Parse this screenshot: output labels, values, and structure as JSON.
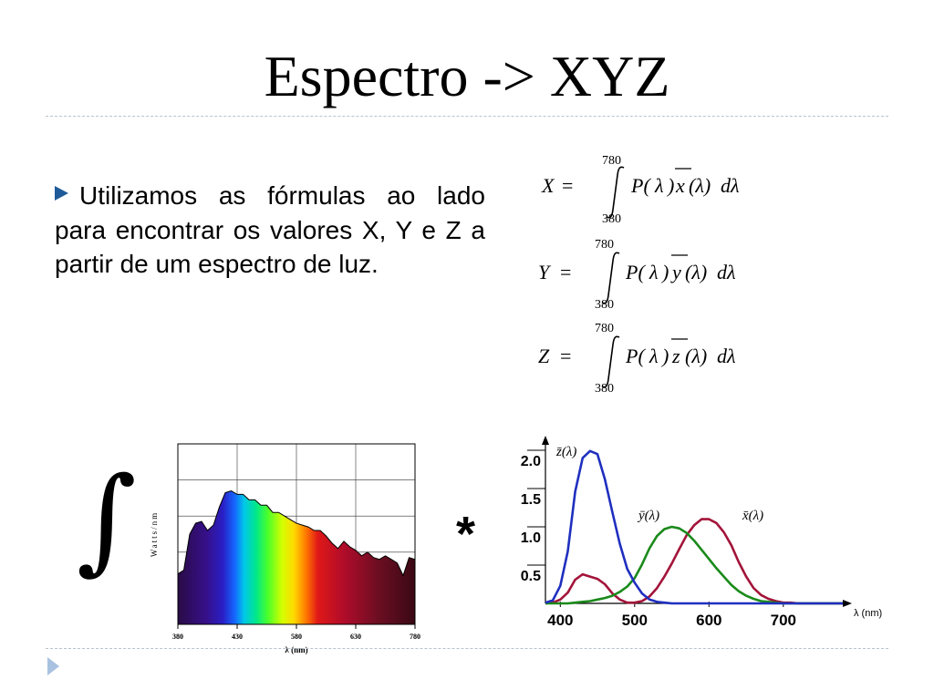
{
  "slide": {
    "title": "Espectro -> XYZ",
    "bullet_text": "Utilizamos as fórmulas ao lado para encontrar os valores X, Y e Z a partir de um espectro de luz.",
    "operator_integral": "∫",
    "operator_multiply": "*"
  },
  "formulas": [
    {
      "lhs": "X",
      "integral_upper": "780",
      "integral_lower": "380",
      "cmf": "x"
    },
    {
      "lhs": "Y",
      "integral_upper": "780",
      "integral_lower": "380",
      "cmf": "y"
    },
    {
      "lhs": "Z",
      "integral_upper": "780",
      "integral_lower": "380",
      "cmf": "z"
    }
  ],
  "spd_chart": {
    "ylabel": "Watts/nm",
    "xlabel": "λ (nm)",
    "x_ticks": [
      "380",
      "430",
      "580",
      "630",
      "780"
    ],
    "chart_data": {
      "type": "area",
      "ylabel": "Watts/nm",
      "xlabel": "λ (nm)",
      "ylim": [
        0,
        1
      ],
      "x": [
        380,
        390,
        400,
        410,
        420,
        430,
        440,
        450,
        460,
        470,
        480,
        490,
        500,
        510,
        520,
        530,
        540,
        550,
        560,
        570,
        580,
        590,
        600,
        610,
        620,
        630,
        640,
        650,
        660,
        670,
        680,
        690,
        700,
        710,
        720,
        730,
        740,
        750,
        760,
        770,
        780
      ],
      "values": [
        0.28,
        0.3,
        0.5,
        0.56,
        0.57,
        0.52,
        0.55,
        0.65,
        0.73,
        0.74,
        0.72,
        0.72,
        0.69,
        0.69,
        0.66,
        0.66,
        0.62,
        0.62,
        0.6,
        0.58,
        0.56,
        0.55,
        0.54,
        0.52,
        0.52,
        0.49,
        0.45,
        0.42,
        0.46,
        0.43,
        0.41,
        0.38,
        0.4,
        0.37,
        0.36,
        0.38,
        0.36,
        0.34,
        0.27,
        0.37,
        0.36
      ]
    }
  },
  "cmf_chart": {
    "chart_data": {
      "type": "line",
      "xlabel": "λ (nm)",
      "x_ticks": [
        400,
        500,
        600,
        700
      ],
      "y_ticks": [
        0.5,
        1.0,
        1.5,
        2.0
      ],
      "xlim": [
        380,
        780
      ],
      "ylim": [
        0,
        2.0
      ],
      "x": [
        380,
        390,
        400,
        410,
        420,
        430,
        440,
        450,
        460,
        470,
        480,
        490,
        500,
        510,
        520,
        530,
        540,
        550,
        560,
        570,
        580,
        590,
        600,
        610,
        620,
        630,
        640,
        650,
        660,
        670,
        680,
        690,
        700,
        710,
        720,
        730,
        740,
        750,
        760,
        770,
        780
      ],
      "series": [
        {
          "name": "x̄(λ)",
          "color": "#a3143a",
          "values": [
            0.0,
            0.01,
            0.05,
            0.14,
            0.31,
            0.38,
            0.35,
            0.32,
            0.25,
            0.13,
            0.05,
            0.01,
            0.01,
            0.03,
            0.09,
            0.2,
            0.35,
            0.52,
            0.71,
            0.89,
            1.02,
            1.1,
            1.1,
            1.05,
            0.93,
            0.76,
            0.54,
            0.35,
            0.2,
            0.11,
            0.06,
            0.03,
            0.01,
            0.01,
            0.0,
            0.0,
            0.0,
            0.0,
            0.0,
            0.0,
            0.0
          ]
        },
        {
          "name": "ȳ(λ)",
          "color": "#1a8a1a",
          "values": [
            0.0,
            0.0,
            0.0,
            0.0,
            0.01,
            0.02,
            0.03,
            0.05,
            0.07,
            0.1,
            0.15,
            0.22,
            0.33,
            0.51,
            0.72,
            0.88,
            0.97,
            1.0,
            0.98,
            0.92,
            0.82,
            0.7,
            0.58,
            0.46,
            0.35,
            0.24,
            0.16,
            0.1,
            0.06,
            0.03,
            0.02,
            0.01,
            0.0,
            0.0,
            0.0,
            0.0,
            0.0,
            0.0,
            0.0,
            0.0,
            0.0
          ]
        },
        {
          "name": "z̄(λ)",
          "color": "#1f2fbf",
          "values": [
            0.01,
            0.04,
            0.23,
            0.68,
            1.46,
            1.9,
            1.99,
            1.95,
            1.62,
            1.19,
            0.78,
            0.45,
            0.27,
            0.13,
            0.05,
            0.02,
            0.01,
            0.0,
            0.0,
            0.0,
            0.0,
            0.0,
            0.0,
            0.0,
            0.0,
            0.0,
            0.0,
            0.0,
            0.0,
            0.0,
            0.0,
            0.0,
            0.0,
            0.0,
            0.0,
            0.0,
            0.0,
            0.0,
            0.0,
            0.0,
            0.0
          ]
        }
      ]
    }
  }
}
